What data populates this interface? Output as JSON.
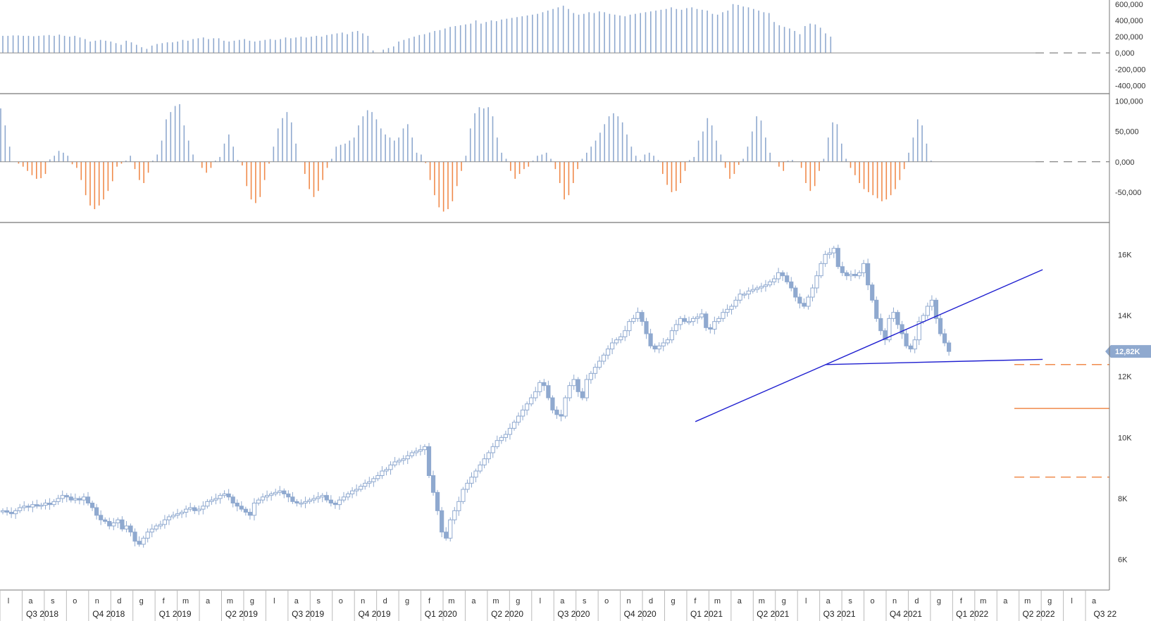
{
  "chart_data": [
    {
      "type": "bar",
      "panel": "volume",
      "ylim": [
        -500000,
        650000
      ],
      "y_ticks": [
        "600,000",
        "400,000",
        "200,000",
        "0,000",
        "-200,000",
        "-400,000"
      ],
      "y_tick_values": [
        600000,
        400000,
        200000,
        0,
        -200000,
        -400000
      ],
      "color": "#8fa9cf",
      "values": [
        210000,
        210000,
        215000,
        215000,
        210000,
        210000,
        205000,
        210000,
        215000,
        220000,
        210000,
        225000,
        210000,
        200000,
        210000,
        190000,
        170000,
        140000,
        150000,
        160000,
        150000,
        140000,
        120000,
        100000,
        150000,
        130000,
        100000,
        70000,
        50000,
        90000,
        110000,
        120000,
        130000,
        130000,
        140000,
        160000,
        150000,
        170000,
        180000,
        190000,
        170000,
        180000,
        180000,
        150000,
        140000,
        150000,
        160000,
        170000,
        150000,
        140000,
        150000,
        160000,
        170000,
        160000,
        170000,
        190000,
        180000,
        190000,
        200000,
        190000,
        200000,
        210000,
        200000,
        220000,
        230000,
        240000,
        250000,
        230000,
        260000,
        270000,
        240000,
        210000,
        30000,
        0,
        40000,
        60000,
        80000,
        140000,
        160000,
        180000,
        200000,
        220000,
        230000,
        250000,
        270000,
        280000,
        300000,
        320000,
        330000,
        340000,
        350000,
        360000,
        400000,
        360000,
        380000,
        400000,
        390000,
        410000,
        420000,
        430000,
        440000,
        450000,
        460000,
        470000,
        480000,
        500000,
        520000,
        540000,
        560000,
        580000,
        540000,
        490000,
        470000,
        480000,
        500000,
        490000,
        510000,
        500000,
        480000,
        470000,
        460000,
        450000,
        470000,
        480000,
        490000,
        500000,
        510000,
        520000,
        530000,
        540000,
        560000,
        540000,
        530000,
        550000,
        560000,
        540000,
        530000,
        520000,
        480000,
        470000,
        500000,
        520000,
        600000,
        590000,
        570000,
        560000,
        540000,
        520000,
        500000,
        490000,
        380000,
        340000,
        320000,
        300000,
        270000,
        230000,
        330000,
        360000,
        350000,
        310000,
        240000,
        200000
      ]
    },
    {
      "type": "bar",
      "panel": "oscillator",
      "ylim": [
        -100000,
        110000
      ],
      "y_ticks": [
        "100,000",
        "50,000",
        "0,000",
        "-50,000"
      ],
      "y_tick_values": [
        100000,
        50000,
        0,
        -50000
      ],
      "positive_color": "#8fa9cf",
      "negative_color": "#f08a4b",
      "values": [
        88000,
        60000,
        25000,
        0,
        -3000,
        -8000,
        -15000,
        -22000,
        -28000,
        -27000,
        -20000,
        4000,
        10000,
        18000,
        15000,
        10000,
        -4000,
        -10000,
        -30000,
        -55000,
        -72000,
        -78000,
        -72000,
        -62000,
        -48000,
        -32000,
        -8000,
        -3000,
        2000,
        10000,
        -12000,
        -30000,
        -35000,
        -18000,
        2000,
        12000,
        35000,
        70000,
        82000,
        92000,
        95000,
        60000,
        35000,
        12000,
        0,
        -10000,
        -18000,
        -10000,
        2000,
        8000,
        30000,
        45000,
        25000,
        3000,
        -6000,
        -40000,
        -62000,
        -68000,
        -58000,
        -30000,
        -3000,
        25000,
        55000,
        72000,
        82000,
        65000,
        30000,
        0,
        -20000,
        -45000,
        -58000,
        -48000,
        -30000,
        -10000,
        5000,
        25000,
        28000,
        30000,
        35000,
        40000,
        60000,
        75000,
        85000,
        82000,
        70000,
        55000,
        45000,
        40000,
        35000,
        40000,
        55000,
        62000,
        40000,
        15000,
        12000,
        -2000,
        -30000,
        -55000,
        -75000,
        -82000,
        -78000,
        -65000,
        -40000,
        -15000,
        10000,
        55000,
        80000,
        90000,
        88000,
        90000,
        75000,
        40000,
        15000,
        5000,
        -15000,
        -28000,
        -20000,
        -12000,
        -8000,
        2000,
        10000,
        12000,
        15000,
        5000,
        -12000,
        -35000,
        -62000,
        -55000,
        -35000,
        -12000,
        5000,
        15000,
        25000,
        35000,
        48000,
        62000,
        75000,
        80000,
        75000,
        65000,
        45000,
        25000,
        10000,
        3000,
        12000,
        15000,
        10000,
        3000,
        -20000,
        -38000,
        -50000,
        -48000,
        -35000,
        -15000,
        3000,
        8000,
        35000,
        50000,
        72000,
        60000,
        35000,
        12000,
        -10000,
        -28000,
        -20000,
        -5000,
        5000,
        25000,
        50000,
        75000,
        68000,
        40000,
        15000,
        0,
        -8000,
        -15000,
        2000,
        3000,
        0,
        -10000,
        -35000,
        -48000,
        -40000,
        -15000,
        5000,
        40000,
        65000,
        62000,
        30000,
        5000,
        -10000,
        -22000,
        -35000,
        -45000,
        -50000,
        -55000,
        -60000,
        -65000,
        -62000,
        -55000,
        -45000,
        -30000,
        -12000,
        15000,
        40000,
        70000,
        60000,
        30000,
        2000
      ]
    },
    {
      "type": "candlestick",
      "panel": "price",
      "ylim": [
        5000,
        17000
      ],
      "y_ticks": [
        "16K",
        "14K",
        "12K",
        "10K",
        "8K",
        "6K"
      ],
      "y_tick_values": [
        16000,
        14000,
        12000,
        10000,
        8000,
        6000
      ],
      "last_price": "12,82K",
      "last_price_value": 12820,
      "color": "#8fa9cf",
      "trendlines": [
        {
          "color": "#1f1fd0",
          "from": [
            162.5,
            10520
          ],
          "to": [
            244,
            15500
          ]
        },
        {
          "color": "#1f1fd0",
          "from": [
            193,
            12390
          ],
          "to": [
            244,
            12560
          ]
        }
      ],
      "levels": [
        {
          "value": 12390,
          "style": "dashed",
          "color": "#f08a4b"
        },
        {
          "value": 10950,
          "style": "solid",
          "color": "#f08a4b"
        },
        {
          "value": 8700,
          "style": "dashed",
          "color": "#f08a4b"
        }
      ],
      "closes": [
        7600,
        7550,
        7500,
        7600,
        7700,
        7750,
        7720,
        7800,
        7750,
        7780,
        7850,
        7800,
        7900,
        8000,
        8100,
        8050,
        7950,
        8000,
        7950,
        8050,
        7850,
        7700,
        7450,
        7300,
        7250,
        7100,
        7200,
        7300,
        7000,
        7100,
        6900,
        6600,
        6500,
        6700,
        6900,
        7000,
        7100,
        7150,
        7300,
        7400,
        7450,
        7500,
        7550,
        7650,
        7700,
        7600,
        7650,
        7750,
        7900,
        7950,
        8000,
        8100,
        8150,
        8050,
        7850,
        7750,
        7650,
        7550,
        7450,
        7850,
        7950,
        8050,
        8100,
        8150,
        8200,
        8250,
        8150,
        8050,
        7900,
        7850,
        7850,
        7900,
        7950,
        8000,
        8050,
        8100,
        7950,
        7850,
        7800,
        7950,
        8050,
        8150,
        8250,
        8300,
        8400,
        8500,
        8550,
        8650,
        8750,
        8900,
        8950,
        9100,
        9200,
        9250,
        9300,
        9400,
        9500,
        9550,
        9600,
        9700,
        8750,
        8200,
        7600,
        6900,
        6700,
        7300,
        7600,
        7900,
        8300,
        8500,
        8700,
        8900,
        9100,
        9300,
        9500,
        9700,
        9900,
        10000,
        10100,
        10300,
        10500,
        10700,
        10900,
        11100,
        11300,
        11500,
        11800,
        11700,
        11300,
        10900,
        10750,
        10700,
        11300,
        11700,
        11900,
        11500,
        11300,
        11900,
        12100,
        12300,
        12500,
        12700,
        12900,
        13100,
        13200,
        13300,
        13500,
        13800,
        13900,
        14100,
        13800,
        13400,
        13000,
        12900,
        13000,
        13100,
        13200,
        13500,
        13700,
        13900,
        13800,
        13800,
        13900,
        13950,
        14050,
        13600,
        13550,
        13800,
        13900,
        14100,
        14200,
        14300,
        14500,
        14700,
        14700,
        14800,
        14850,
        14900,
        14950,
        15000,
        15100,
        15200,
        15400,
        15300,
        15100,
        14900,
        14600,
        14400,
        14300,
        14600,
        14900,
        15300,
        15700,
        16000,
        16050,
        16200,
        15600,
        15400,
        15300,
        15350,
        15300,
        15400,
        15700,
        15000,
        14500,
        13900,
        13500,
        13200,
        13900,
        14100,
        13700,
        13400,
        13000,
        12900,
        13200,
        13800,
        14000,
        14300,
        14500,
        13900,
        13400,
        13100,
        12820
      ]
    }
  ],
  "x_axis": {
    "months": [
      "l",
      "a",
      "s",
      "o",
      "n",
      "d",
      "g",
      "f",
      "m",
      "a",
      "m",
      "g",
      "l",
      "a",
      "s",
      "o",
      "n",
      "d",
      "g",
      "f",
      "m",
      "a",
      "m",
      "g",
      "l",
      "a",
      "s",
      "o",
      "n",
      "d",
      "g",
      "f",
      "m",
      "a",
      "m",
      "g",
      "l",
      "a",
      "s",
      "o",
      "n",
      "d",
      "g",
      "f",
      "m",
      "a",
      "m",
      "g",
      "l",
      "a"
    ],
    "quarters": [
      "Q3 2018",
      "Q4 2018",
      "Q1 2019",
      "Q2 2019",
      "Q3 2019",
      "Q4 2019",
      "Q1 2020",
      "Q2 2020",
      "Q3 2020",
      "Q4 2020",
      "Q1 2021",
      "Q2 2021",
      "Q3 2021",
      "Q4 2021",
      "Q1 2022",
      "Q2 2022",
      "Q3 22"
    ]
  },
  "colors": {
    "positive": "#8fa9cf",
    "negative": "#f08a4b",
    "trendline": "#1f1fd0",
    "price_tag": "#8fa9cf",
    "panel_border": "#555555"
  }
}
